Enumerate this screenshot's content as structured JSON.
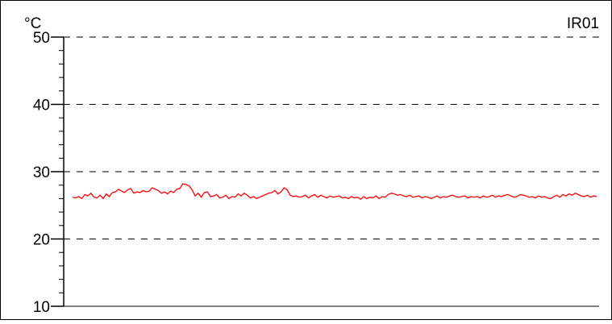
{
  "chart_data": {
    "type": "line",
    "unit_label": "°C",
    "channel_label": "IR01",
    "ylim": [
      10,
      50
    ],
    "y_ticks": [
      {
        "value": 50,
        "label": "50"
      },
      {
        "value": 40,
        "label": "40"
      },
      {
        "value": 30,
        "label": "30"
      },
      {
        "value": 20,
        "label": "20"
      },
      {
        "value": 10,
        "label": "10"
      }
    ],
    "y_minor_step": 2,
    "grid": "dashed horizontal at major ticks",
    "line_color": "#ff0000",
    "series": [
      {
        "values": [
          26.2,
          26.1,
          26.3,
          26.0,
          26.6,
          26.4,
          26.8,
          26.2,
          26.1,
          26.5,
          26.0,
          26.7,
          26.3,
          26.9,
          27.0,
          27.4,
          27.1,
          26.9,
          27.3,
          27.5,
          26.8,
          27.0,
          26.9,
          27.2,
          27.0,
          27.1,
          27.6,
          27.4,
          27.2,
          26.8,
          27.0,
          26.7,
          27.1,
          26.9,
          27.4,
          27.5,
          28.2,
          28.1,
          27.9,
          27.3,
          26.4,
          26.8,
          26.2,
          26.9,
          27.0,
          26.3,
          26.4,
          26.6,
          26.1,
          26.2,
          26.5,
          26.0,
          26.3,
          26.2,
          26.7,
          26.4,
          26.8,
          26.5,
          26.1,
          26.3,
          26.0,
          26.2,
          26.4,
          26.6,
          26.8,
          26.9,
          27.2,
          26.7,
          27.0,
          27.6,
          27.3,
          26.5,
          26.3,
          26.4,
          26.2,
          26.3,
          26.5,
          26.1,
          26.4,
          26.6,
          26.2,
          26.5,
          26.3,
          26.1,
          26.4,
          26.2,
          26.3,
          26.4,
          26.1,
          26.2,
          26.0,
          26.3,
          26.1,
          26.2,
          25.9,
          26.3,
          26.0,
          26.2,
          26.1,
          26.4,
          26.0,
          26.3,
          26.2,
          26.6,
          26.8,
          26.7,
          26.5,
          26.6,
          26.4,
          26.3,
          26.5,
          26.2,
          26.3,
          26.4,
          26.1,
          26.3,
          26.2,
          26.0,
          26.2,
          26.4,
          26.1,
          26.3,
          26.2,
          26.4,
          26.5,
          26.3,
          26.2,
          26.3,
          26.4,
          26.1,
          26.3,
          26.2,
          26.3,
          26.1,
          26.4,
          26.2,
          26.3,
          26.5,
          26.2,
          26.4,
          26.3,
          26.5,
          26.6,
          26.4,
          26.2,
          26.3,
          26.6,
          26.5,
          26.4,
          26.2,
          26.3,
          26.1,
          26.4,
          26.2,
          26.3,
          26.1,
          26.0,
          26.3,
          26.5,
          26.2,
          26.6,
          26.4,
          26.7,
          26.5,
          26.8,
          26.6,
          26.4,
          26.3,
          26.5,
          26.2,
          26.4,
          26.3
        ]
      }
    ]
  }
}
